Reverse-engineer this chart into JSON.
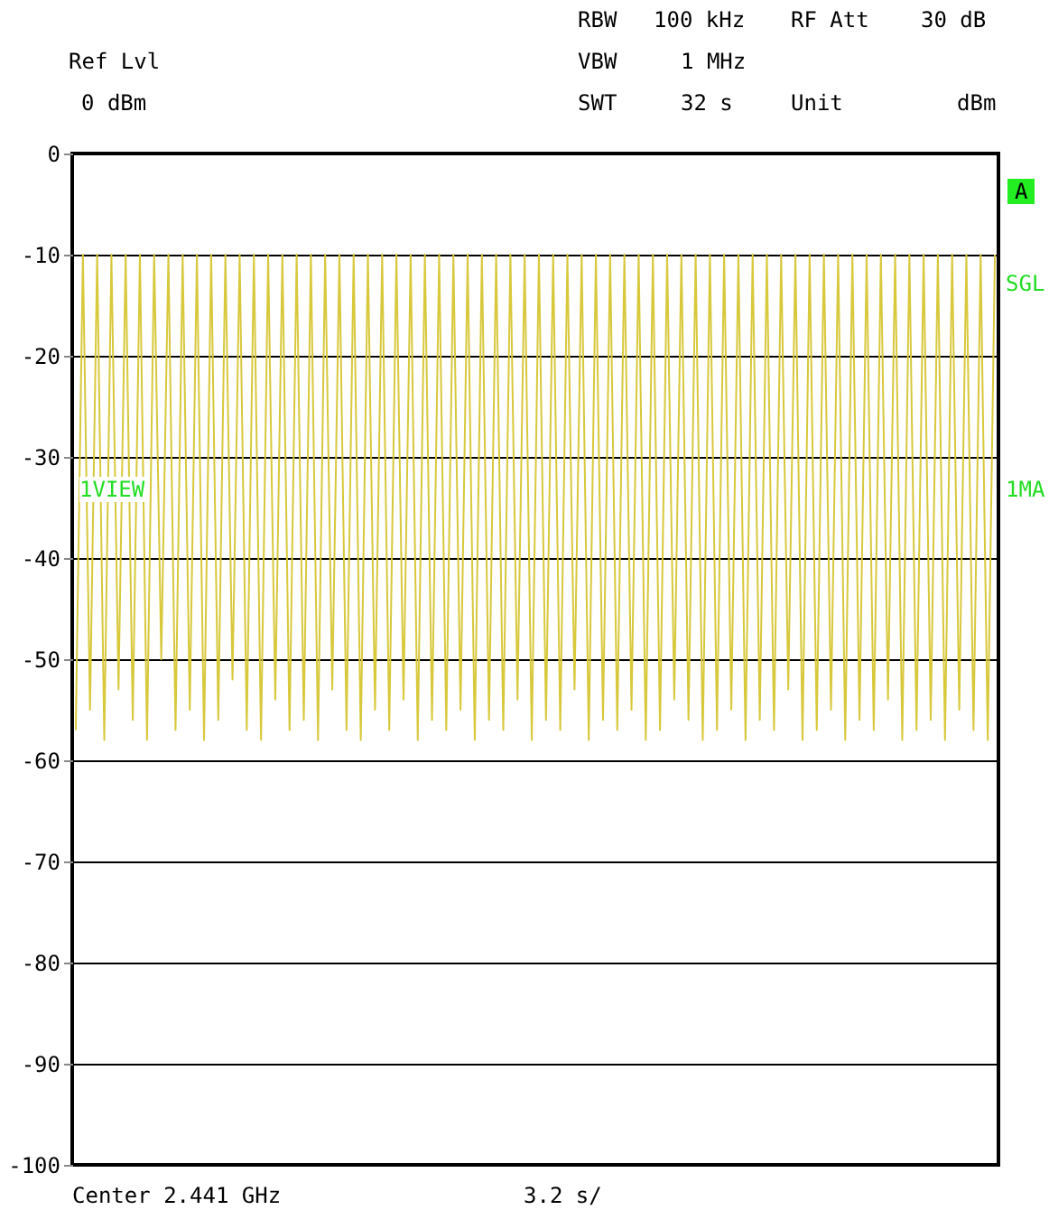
{
  "chart_data": {
    "type": "line",
    "annotations": [
      "Ref Lvl",
      "0 dBm",
      "RBW",
      "100 kHz",
      "RF Att",
      "30 dB",
      "VBW",
      "1 MHz",
      "SWT",
      "32 s",
      "Unit",
      "dBm",
      "A",
      "SGL",
      "1VIEW",
      "1MA",
      "Center 2.441 GHz",
      "3.2 s/"
    ],
    "categories": [
      null,
      null,
      null,
      null,
      null,
      null,
      null,
      null,
      null,
      null,
      null,
      null,
      null,
      null,
      null,
      null,
      null,
      null,
      null,
      null,
      null,
      null,
      null,
      null,
      null,
      null,
      null,
      null,
      null,
      null,
      null,
      null,
      null,
      null,
      null,
      null,
      null,
      null,
      null,
      null,
      null,
      null,
      null,
      null,
      null,
      null,
      null,
      null,
      null,
      null,
      null,
      null,
      null,
      null,
      null,
      null,
      null,
      null,
      null,
      null,
      null,
      null,
      null,
      null,
      null,
      null,
      null,
      null,
      null,
      null,
      null,
      null,
      null,
      null,
      null,
      null,
      null,
      null,
      null,
      null,
      null,
      null,
      null,
      null,
      null,
      null,
      null,
      null,
      null,
      null,
      null,
      null,
      null,
      null,
      null,
      null,
      null,
      null,
      null,
      null,
      null,
      null,
      null,
      null,
      null,
      null,
      null,
      null,
      null,
      null,
      null,
      null,
      null,
      null,
      null,
      null,
      null,
      null,
      null,
      null,
      null,
      null,
      null,
      null,
      null,
      null,
      null,
      null,
      null,
      null
    ],
    "series": [
      {
        "color": "#d8c83c",
        "values": [
          -57,
          -10,
          -55,
          -10,
          -58,
          -10,
          -53,
          -10,
          -56,
          -10,
          -58,
          -10,
          -50,
          -10,
          -57,
          -10,
          -55,
          -10,
          -58,
          -10,
          -56,
          -10,
          -52,
          -10,
          -57,
          -10,
          -58,
          -10,
          -54,
          -10,
          -57,
          -10,
          -56,
          -10,
          -58,
          -10,
          -53,
          -10,
          -57,
          -10,
          -58,
          -10,
          -55,
          -10,
          -57,
          -10,
          -54,
          -10,
          -58,
          -10,
          -56,
          -10,
          -57,
          -10,
          -55,
          -10,
          -58,
          -10,
          -56,
          -10,
          -57,
          -10,
          -54,
          -10,
          -58,
          -10,
          -56,
          -10,
          -57,
          -10,
          -53,
          -10,
          -58,
          -10,
          -56,
          -10,
          -57,
          -10,
          -55,
          -10,
          -58,
          -10,
          -57,
          -10,
          -54,
          -10,
          -56,
          -10,
          -58,
          -10,
          -57,
          -10,
          -55,
          -10,
          -58,
          -10,
          -56,
          -10,
          -57,
          -10,
          -53,
          -10,
          -58,
          -10,
          -57,
          -10,
          -55,
          -10,
          -58,
          -10,
          -56,
          -10,
          -57,
          -10,
          -54,
          -10,
          -58,
          -10,
          -57,
          -10,
          -56,
          -10,
          -58,
          -10,
          -55,
          -10,
          -57,
          -10,
          -58,
          -10
        ]
      }
    ],
    "ylim": [
      -100,
      0
    ],
    "yticks": [
      0,
      -10,
      -20,
      -30,
      -40,
      -50,
      -60,
      -70,
      -80,
      -90,
      -100
    ],
    "grid": true,
    "tick_labels": "y",
    "marker": "none"
  }
}
